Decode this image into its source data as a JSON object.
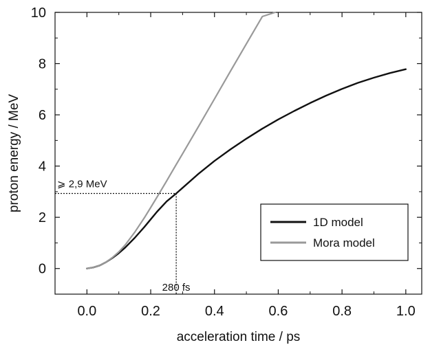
{
  "chart_data": {
    "type": "line",
    "xlabel": "acceleration time / ps",
    "ylabel": "proton energy / MeV",
    "xlim": [
      -0.1,
      1.05
    ],
    "ylim": [
      -1,
      10
    ],
    "x_ticks": [
      "0.0",
      "0.2",
      "0.4",
      "0.6",
      "0.8",
      "1.0"
    ],
    "y_ticks": [
      "0",
      "2",
      "4",
      "6",
      "8",
      "10"
    ],
    "grid": false,
    "legend_position": "lower-right",
    "series": [
      {
        "name": "1D model",
        "color": "#111111",
        "x": [
          0.0,
          0.02,
          0.04,
          0.06,
          0.08,
          0.1,
          0.12,
          0.15,
          0.18,
          0.2,
          0.22,
          0.25,
          0.28,
          0.3,
          0.35,
          0.4,
          0.45,
          0.5,
          0.55,
          0.6,
          0.65,
          0.7,
          0.75,
          0.8,
          0.85,
          0.9,
          0.95,
          1.0
        ],
        "y": [
          0.0,
          0.04,
          0.12,
          0.25,
          0.41,
          0.6,
          0.82,
          1.2,
          1.62,
          1.92,
          2.22,
          2.62,
          2.93,
          3.15,
          3.7,
          4.2,
          4.65,
          5.07,
          5.46,
          5.82,
          6.15,
          6.46,
          6.75,
          7.01,
          7.25,
          7.45,
          7.63,
          7.78
        ]
      },
      {
        "name": "Mora model",
        "color": "#999999",
        "x": [
          0.0,
          0.02,
          0.04,
          0.06,
          0.08,
          0.1,
          0.12,
          0.15,
          0.18,
          0.2,
          0.22,
          0.25,
          0.28,
          0.3,
          0.35,
          0.4,
          0.45,
          0.5,
          0.55,
          0.59
        ],
        "y": [
          0.0,
          0.04,
          0.12,
          0.25,
          0.43,
          0.65,
          0.92,
          1.42,
          1.98,
          2.38,
          2.79,
          3.42,
          4.06,
          4.48,
          5.55,
          6.62,
          7.7,
          8.77,
          9.84,
          10.0
        ]
      }
    ],
    "annotations": [
      {
        "text": "⩾ 2,9 MeV",
        "x": 0.28,
        "y": 2.93
      },
      {
        "text": "280 fs",
        "x": 0.28,
        "y": 2.93
      }
    ]
  }
}
